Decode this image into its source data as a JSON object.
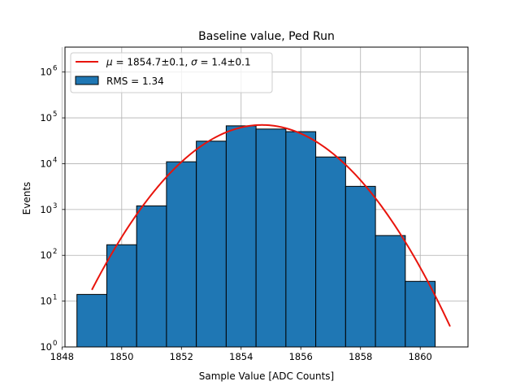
{
  "chart_data": {
    "type": "bar",
    "title": "Baseline value, Ped Run",
    "xlabel": "Sample Value [ADC Counts]",
    "ylabel": "Events",
    "y_scale": "log",
    "xlim": [
      1848.1,
      1861.6
    ],
    "ylim": [
      1,
      3500000
    ],
    "grid": true,
    "legend_position": "top-left",
    "bar_color": "#1f77b4",
    "bar_edge_color": "#000000",
    "fit_color": "#e8140c",
    "x_ticks": [
      1848,
      1850,
      1852,
      1854,
      1856,
      1858,
      1860
    ],
    "y_ticks": [
      {
        "value": 1,
        "base": "10",
        "exp": "0"
      },
      {
        "value": 10,
        "base": "10",
        "exp": "1"
      },
      {
        "value": 100,
        "base": "10",
        "exp": "2"
      },
      {
        "value": 1000,
        "base": "10",
        "exp": "3"
      },
      {
        "value": 10000,
        "base": "10",
        "exp": "4"
      },
      {
        "value": 100000,
        "base": "10",
        "exp": "5"
      },
      {
        "value": 1000000,
        "base": "10",
        "exp": "6"
      }
    ],
    "bins": [
      {
        "x0": 1848.5,
        "x1": 1849.5,
        "count": 14
      },
      {
        "x0": 1849.5,
        "x1": 1850.5,
        "count": 170
      },
      {
        "x0": 1850.5,
        "x1": 1851.5,
        "count": 1200
      },
      {
        "x0": 1851.5,
        "x1": 1852.5,
        "count": 11000
      },
      {
        "x0": 1852.5,
        "x1": 1853.5,
        "count": 31000
      },
      {
        "x0": 1853.5,
        "x1": 1854.5,
        "count": 67000
      },
      {
        "x0": 1854.5,
        "x1": 1855.5,
        "count": 57000
      },
      {
        "x0": 1855.5,
        "x1": 1856.5,
        "count": 50000
      },
      {
        "x0": 1856.5,
        "x1": 1857.5,
        "count": 14000
      },
      {
        "x0": 1857.5,
        "x1": 1858.5,
        "count": 3200
      },
      {
        "x0": 1858.5,
        "x1": 1859.5,
        "count": 270
      },
      {
        "x0": 1859.5,
        "x1": 1860.5,
        "count": 27
      }
    ],
    "fit": {
      "type": "gaussian",
      "amplitude": 70000,
      "mu": 1854.7,
      "sigma": 1.4,
      "x_range": [
        1849,
        1861
      ]
    },
    "legend": {
      "fit_label": {
        "mu_symbol": "μ",
        "mu_text": " = 1854.7±0.1, ",
        "sigma_symbol": "σ",
        "sigma_text": " = 1.4±0.1"
      },
      "hist_label": "RMS = 1.34"
    }
  }
}
